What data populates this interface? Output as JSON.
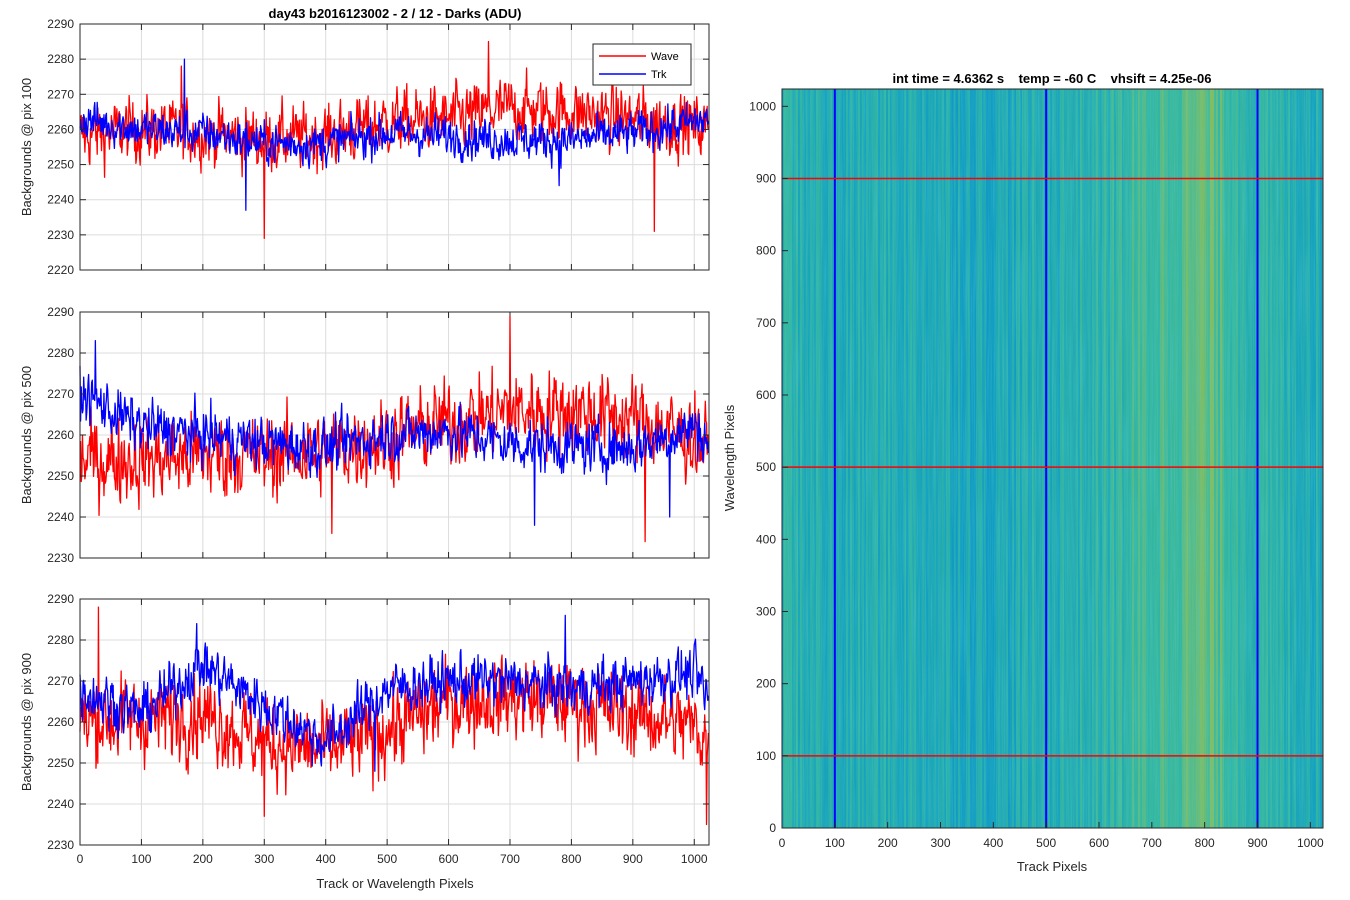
{
  "colors": {
    "wave": "#ff0000",
    "trk": "#0000ff",
    "grid": "#d9d9d9",
    "axis": "#262626"
  },
  "chart_data": [
    {
      "type": "line",
      "title": "day43 b2016123002 - 2 / 12 - Darks (ADU)",
      "xlabel": "",
      "ylabel": "Backgrounds @ pix 100",
      "xlim": [
        0,
        1024
      ],
      "ylim": [
        2220,
        2290
      ],
      "xticks": [
        0,
        100,
        200,
        300,
        400,
        500,
        600,
        700,
        800,
        900,
        1000
      ],
      "xtick_labels_shown": false,
      "yticks": [
        2220,
        2230,
        2240,
        2250,
        2260,
        2270,
        2280,
        2290
      ],
      "grid": true,
      "legend": {
        "placement": "top-right",
        "entries": [
          "Wave",
          "Trk"
        ]
      },
      "series": [
        {
          "name": "Wave",
          "color": "#ff0000",
          "x": [
            0,
            100,
            200,
            300,
            400,
            500,
            600,
            700,
            800,
            900,
            1000,
            1024
          ],
          "y_mean": [
            2258,
            2260,
            2259,
            2257,
            2258,
            2262,
            2263,
            2266,
            2265,
            2263,
            2261,
            2260
          ],
          "y_noise": 7,
          "extremes": [
            {
              "x": 300,
              "y": 2229
            },
            {
              "x": 665,
              "y": 2285
            },
            {
              "x": 935,
              "y": 2231
            },
            {
              "x": 165,
              "y": 2278
            }
          ]
        },
        {
          "name": "Trk",
          "color": "#0000ff",
          "x": [
            0,
            100,
            200,
            300,
            400,
            500,
            600,
            700,
            800,
            900,
            1000,
            1024
          ],
          "y_mean": [
            2263,
            2260,
            2259,
            2256,
            2256,
            2259,
            2258,
            2257,
            2257,
            2259,
            2262,
            2263
          ],
          "y_noise": 4.5,
          "extremes": [
            {
              "x": 170,
              "y": 2280
            },
            {
              "x": 270,
              "y": 2237
            },
            {
              "x": 780,
              "y": 2244
            }
          ]
        }
      ]
    },
    {
      "type": "line",
      "title": "",
      "xlabel": "",
      "ylabel": "Backgrounds @ pix 500",
      "xlim": [
        0,
        1024
      ],
      "ylim": [
        2230,
        2290
      ],
      "xticks": [
        0,
        100,
        200,
        300,
        400,
        500,
        600,
        700,
        800,
        900,
        1000
      ],
      "xtick_labels_shown": false,
      "yticks": [
        2230,
        2240,
        2250,
        2260,
        2270,
        2280,
        2290
      ],
      "grid": true,
      "series": [
        {
          "name": "Wave",
          "color": "#ff0000",
          "x": [
            0,
            100,
            200,
            300,
            400,
            500,
            600,
            700,
            800,
            900,
            1000,
            1024
          ],
          "y_mean": [
            2254,
            2254,
            2255,
            2255,
            2256,
            2259,
            2263,
            2266,
            2266,
            2264,
            2259,
            2257
          ],
          "y_noise": 8,
          "extremes": [
            {
              "x": 700,
              "y": 2289
            },
            {
              "x": 920,
              "y": 2234
            },
            {
              "x": 410,
              "y": 2236
            }
          ]
        },
        {
          "name": "Trk",
          "color": "#0000ff",
          "x": [
            0,
            100,
            200,
            300,
            400,
            500,
            600,
            700,
            800,
            900,
            1000,
            1024
          ],
          "y_mean": [
            2270,
            2262,
            2260,
            2258,
            2257,
            2260,
            2261,
            2258,
            2257,
            2257,
            2262,
            2258
          ],
          "y_noise": 5,
          "extremes": [
            {
              "x": 25,
              "y": 2283
            },
            {
              "x": 740,
              "y": 2238
            },
            {
              "x": 960,
              "y": 2240
            }
          ]
        }
      ]
    },
    {
      "type": "line",
      "title": "",
      "xlabel": "Track or Wavelength Pixels",
      "ylabel": "Backgrounds @ pix 900",
      "xlim": [
        0,
        1024
      ],
      "ylim": [
        2230,
        2290
      ],
      "xticks": [
        0,
        100,
        200,
        300,
        400,
        500,
        600,
        700,
        800,
        900,
        1000
      ],
      "xtick_labels_shown": true,
      "yticks": [
        2230,
        2240,
        2250,
        2260,
        2270,
        2280,
        2290
      ],
      "grid": true,
      "series": [
        {
          "name": "Wave",
          "color": "#ff0000",
          "x": [
            0,
            100,
            200,
            300,
            400,
            500,
            600,
            700,
            800,
            900,
            1000,
            1024
          ],
          "y_mean": [
            2260,
            2261,
            2262,
            2255,
            2253,
            2258,
            2265,
            2266,
            2265,
            2262,
            2259,
            2256
          ],
          "y_noise": 8,
          "extremes": [
            {
              "x": 30,
              "y": 2288
            },
            {
              "x": 300,
              "y": 2237
            },
            {
              "x": 1020,
              "y": 2235
            }
          ]
        },
        {
          "name": "Trk",
          "color": "#0000ff",
          "x": [
            0,
            100,
            200,
            300,
            400,
            500,
            600,
            700,
            800,
            900,
            1000,
            1024
          ],
          "y_mean": [
            2268,
            2262,
            2274,
            2264,
            2255,
            2268,
            2270,
            2270,
            2268,
            2270,
            2272,
            2265
          ],
          "y_noise": 5,
          "extremes": [
            {
              "x": 190,
              "y": 2284
            },
            {
              "x": 790,
              "y": 2286
            },
            {
              "x": 480,
              "y": 2248
            }
          ]
        }
      ]
    },
    {
      "type": "heatmap",
      "title": "int time = 4.6362 s    temp = -60 C    vhsift = 4.25e-06",
      "xlabel": "Track Pixels",
      "ylabel": "Wavelength Pixels",
      "xlim": [
        0,
        1024
      ],
      "ylim": [
        0,
        1024
      ],
      "xticks": [
        0,
        100,
        200,
        300,
        400,
        500,
        600,
        700,
        800,
        900,
        1000
      ],
      "yticks": [
        0,
        100,
        200,
        300,
        400,
        500,
        600,
        700,
        800,
        900,
        1000
      ],
      "colormap": "parula",
      "column_profile": {
        "x": [
          0,
          100,
          200,
          300,
          400,
          500,
          600,
          700,
          800,
          900,
          1000,
          1024
        ],
        "level": [
          0.55,
          0.5,
          0.52,
          0.5,
          0.48,
          0.52,
          0.55,
          0.62,
          0.68,
          0.55,
          0.52,
          0.5
        ]
      },
      "marker_lines": {
        "vertical_x": [
          100,
          500,
          900
        ],
        "vertical_color": "#0000ff",
        "horizontal_y": [
          100,
          500,
          900
        ],
        "horizontal_color": "#ff0000"
      }
    }
  ]
}
